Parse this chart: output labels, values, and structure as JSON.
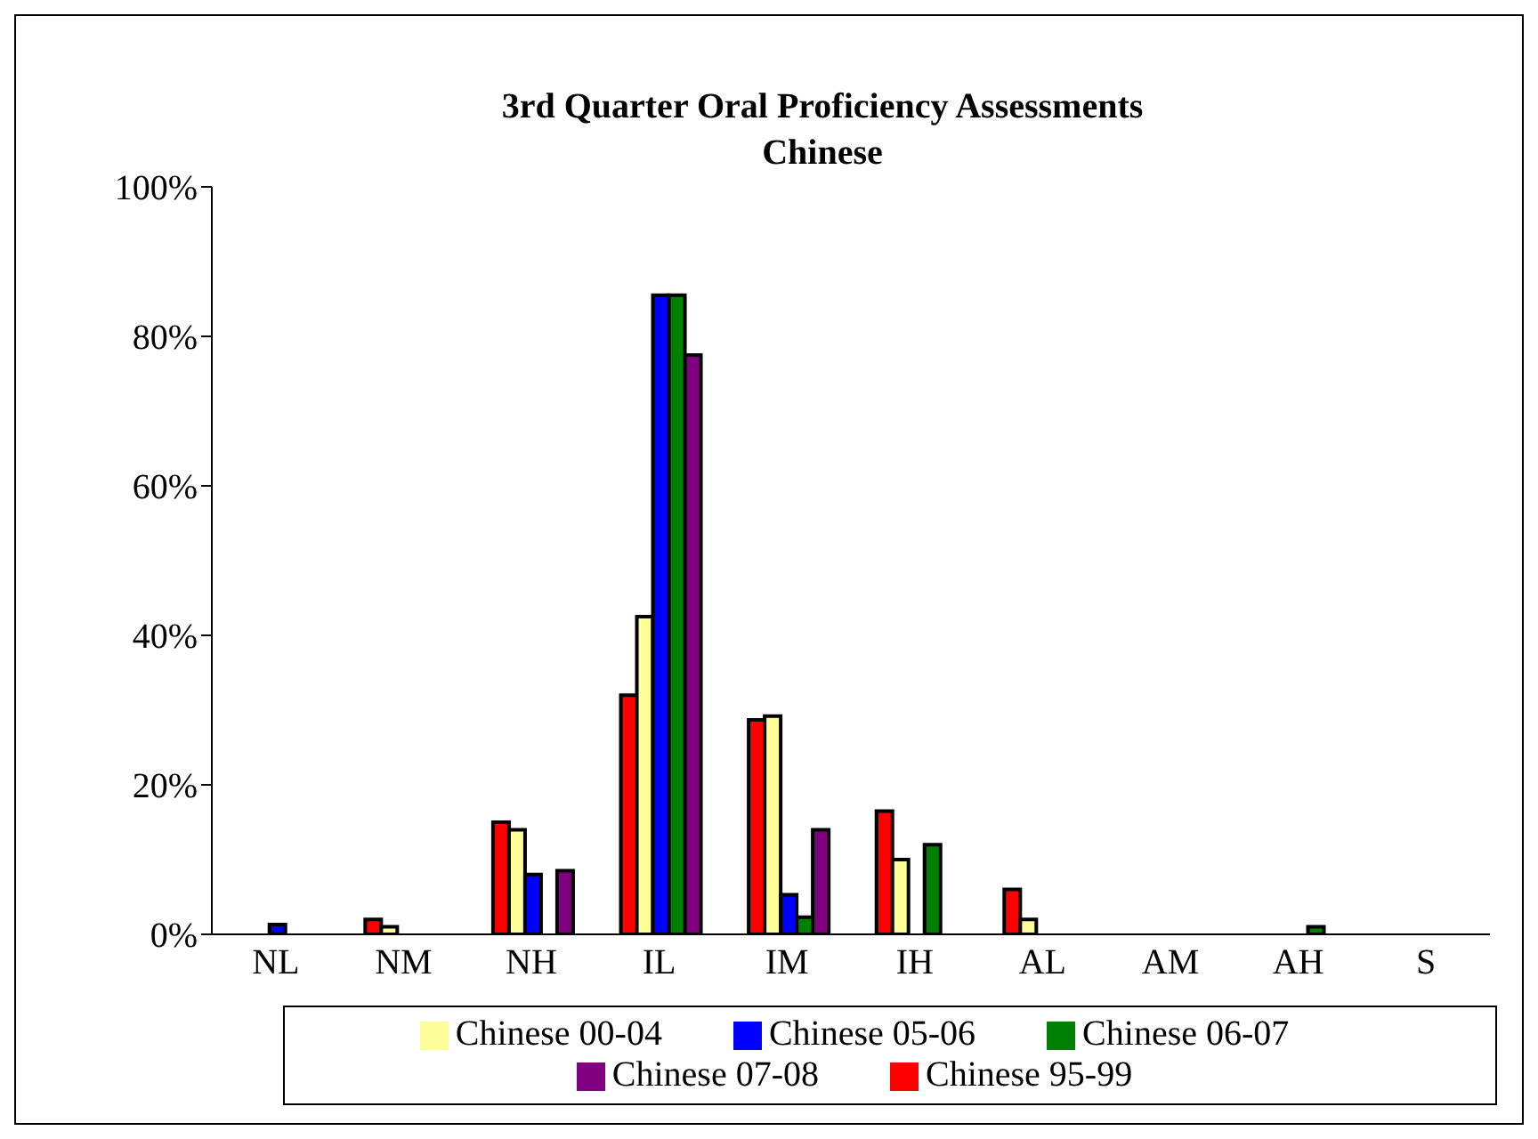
{
  "chart_data": {
    "type": "bar",
    "title": "3rd Quarter Oral Proficiency Assessments\nChinese",
    "categories": [
      "NL",
      "NM",
      "NH",
      "IL",
      "IM",
      "IH",
      "AL",
      "AM",
      "AH",
      "S"
    ],
    "series": [
      {
        "name": "Chinese 95-99",
        "color": "#ff0000",
        "values": [
          0,
          2,
          15,
          32,
          28.7,
          16.5,
          6,
          0,
          0,
          0
        ]
      },
      {
        "name": "Chinese 00-04",
        "color": "#ffff99",
        "values": [
          0,
          1,
          14,
          42.5,
          29.2,
          10,
          2,
          0,
          0,
          0
        ]
      },
      {
        "name": "Chinese 05-06",
        "color": "#0000ff",
        "values": [
          1.3,
          0,
          8,
          85.5,
          5.3,
          0,
          0,
          0,
          0,
          0
        ]
      },
      {
        "name": "Chinese 06-07",
        "color": "#008000",
        "values": [
          0,
          0,
          0,
          85.5,
          2.3,
          12,
          0,
          0,
          1,
          0
        ]
      },
      {
        "name": "Chinese 07-08",
        "color": "#800080",
        "values": [
          0,
          0,
          8.5,
          77.5,
          14,
          0,
          0,
          0,
          0,
          0
        ]
      }
    ],
    "ylim": [
      0,
      100
    ],
    "yticks": [
      {
        "value": 0,
        "label": "0%"
      },
      {
        "value": 20,
        "label": "20%"
      },
      {
        "value": 40,
        "label": "40%"
      },
      {
        "value": 60,
        "label": "60%"
      },
      {
        "value": 80,
        "label": "80%"
      },
      {
        "value": 100,
        "label": "100%"
      }
    ],
    "grid": false,
    "legend": "bottom"
  }
}
